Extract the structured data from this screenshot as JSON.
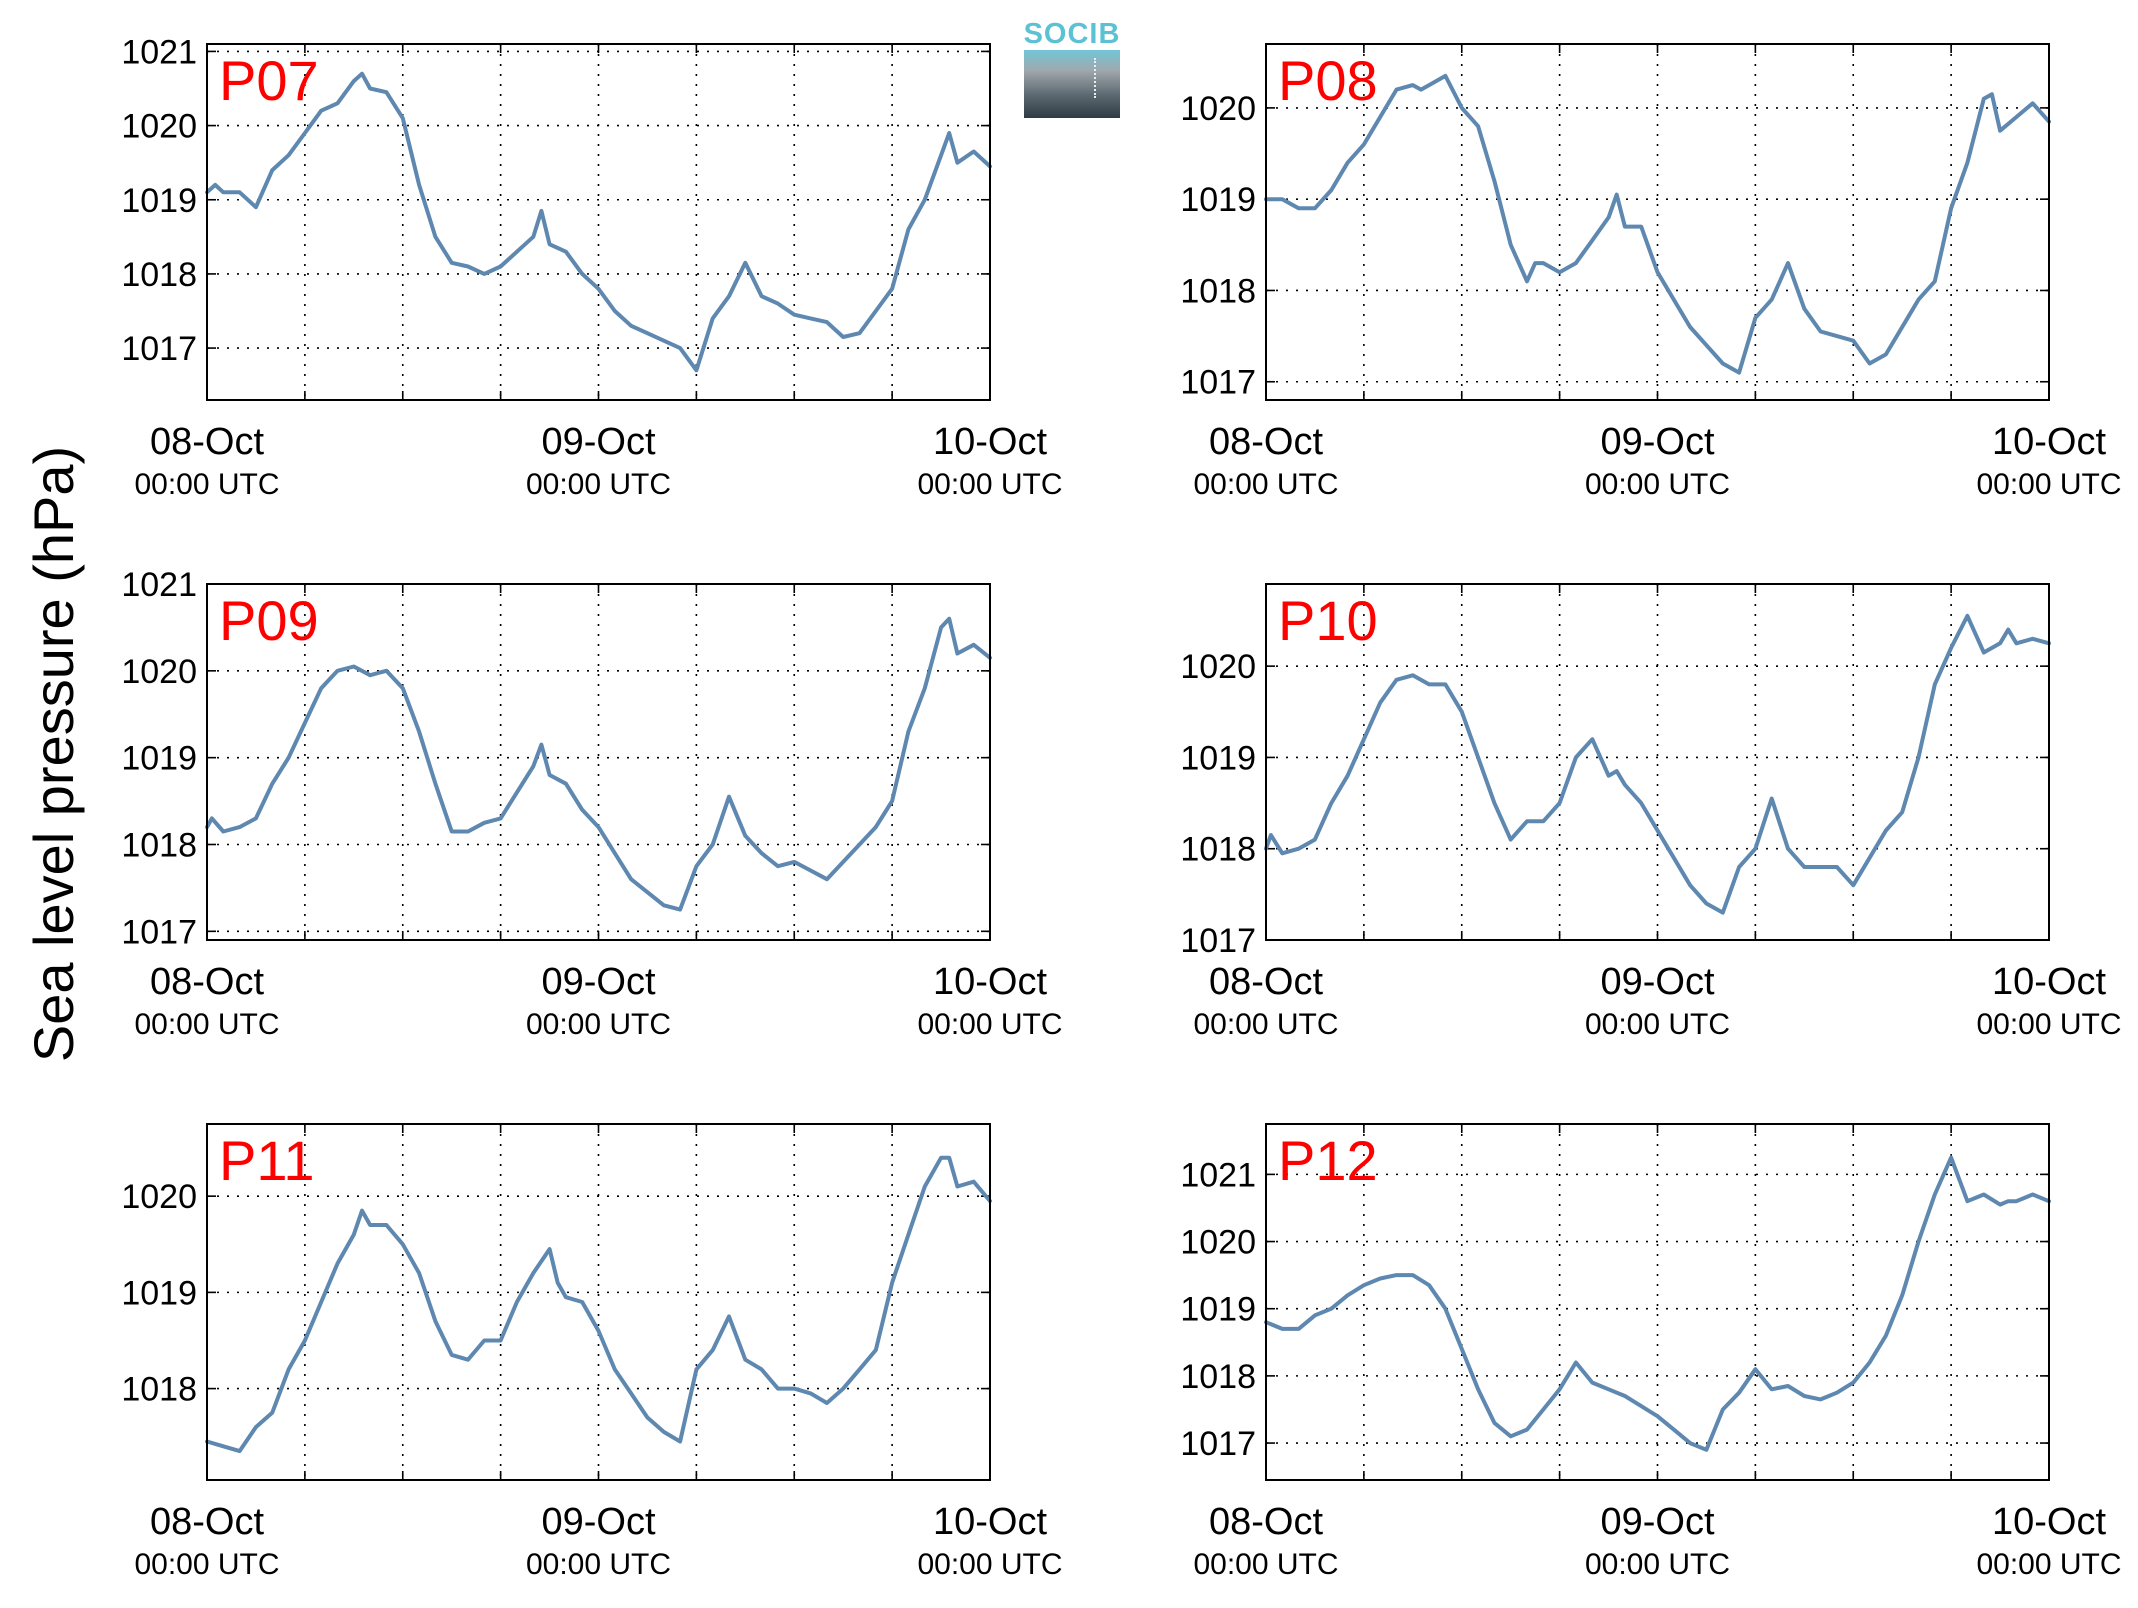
{
  "figure": {
    "ylabel": "Sea level pressure (hPa)",
    "logo_text": "SOCIB",
    "colors": {
      "line": "#5e88b0",
      "station_label": "#ff0000",
      "axis": "#000000",
      "grid": "#000000"
    }
  },
  "chart_data": [
    {
      "type": "line",
      "title": "P07",
      "x_ticks": [
        {
          "line1": "08-Oct",
          "line2": "00:00 UTC"
        },
        {
          "line1": "09-Oct",
          "line2": "00:00 UTC"
        },
        {
          "line1": "10-Oct",
          "line2": "00:00 UTC"
        }
      ],
      "xlim_hours": [
        0,
        48
      ],
      "ylim": [
        1016.3,
        1021.1
      ],
      "y_ticks": [
        1017,
        1018,
        1019,
        1020,
        1021
      ],
      "grid": true,
      "x_hours": [
        0,
        0.5,
        1,
        2,
        3,
        4,
        5,
        6,
        7,
        8,
        9,
        9.5,
        10,
        11,
        12,
        13,
        14,
        15,
        16,
        17,
        18,
        19,
        20,
        20.5,
        21,
        22,
        23,
        24,
        25,
        26,
        27,
        28,
        29,
        30,
        31,
        32,
        33,
        34,
        35,
        36,
        37,
        38,
        39,
        40,
        41,
        42,
        43,
        44,
        45,
        45.5,
        46,
        47,
        48
      ],
      "values": [
        1019.1,
        1019.2,
        1019.1,
        1019.1,
        1018.9,
        1019.4,
        1019.6,
        1019.9,
        1020.2,
        1020.3,
        1020.6,
        1020.7,
        1020.5,
        1020.45,
        1020.1,
        1019.2,
        1018.5,
        1018.15,
        1018.1,
        1018.0,
        1018.1,
        1018.3,
        1018.5,
        1018.85,
        1018.4,
        1018.3,
        1018.0,
        1017.8,
        1017.5,
        1017.3,
        1017.2,
        1017.1,
        1017.0,
        1016.7,
        1017.4,
        1017.7,
        1018.15,
        1017.7,
        1017.6,
        1017.45,
        1017.4,
        1017.35,
        1017.15,
        1017.2,
        1017.5,
        1017.8,
        1018.6,
        1019.0,
        1019.6,
        1019.9,
        1019.5,
        1019.65,
        1019.45
      ]
    },
    {
      "type": "line",
      "title": "P08",
      "x_ticks": [
        {
          "line1": "08-Oct",
          "line2": "00:00 UTC"
        },
        {
          "line1": "09-Oct",
          "line2": "00:00 UTC"
        },
        {
          "line1": "10-Oct",
          "line2": "00:00 UTC"
        }
      ],
      "xlim_hours": [
        0,
        48
      ],
      "ylim": [
        1016.8,
        1020.7
      ],
      "y_ticks": [
        1017,
        1018,
        1019,
        1020
      ],
      "grid": true,
      "x_hours": [
        0,
        1,
        2,
        3,
        4,
        5,
        6,
        7,
        8,
        9,
        9.5,
        10,
        11,
        12,
        13,
        14,
        15,
        16,
        16.5,
        17,
        18,
        19,
        20,
        21,
        21.5,
        22,
        23,
        24,
        25,
        26,
        27,
        28,
        29,
        30,
        31,
        32,
        33,
        34,
        35,
        36,
        37,
        38,
        39,
        40,
        41,
        42,
        43,
        44,
        44.5,
        45,
        46,
        47,
        48
      ],
      "values": [
        1019.0,
        1019.0,
        1018.9,
        1018.9,
        1019.1,
        1019.4,
        1019.6,
        1019.9,
        1020.2,
        1020.25,
        1020.2,
        1020.25,
        1020.35,
        1020.0,
        1019.8,
        1019.2,
        1018.5,
        1018.1,
        1018.3,
        1018.3,
        1018.2,
        1018.3,
        1018.55,
        1018.8,
        1019.05,
        1018.7,
        1018.7,
        1018.2,
        1017.9,
        1017.6,
        1017.4,
        1017.2,
        1017.1,
        1017.7,
        1017.9,
        1018.3,
        1017.8,
        1017.55,
        1017.5,
        1017.45,
        1017.2,
        1017.3,
        1017.6,
        1017.9,
        1018.1,
        1018.9,
        1019.4,
        1020.1,
        1020.15,
        1019.75,
        1019.9,
        1020.05,
        1019.85
      ]
    },
    {
      "type": "line",
      "title": "P09",
      "x_ticks": [
        {
          "line1": "08-Oct",
          "line2": "00:00 UTC"
        },
        {
          "line1": "09-Oct",
          "line2": "00:00 UTC"
        },
        {
          "line1": "10-Oct",
          "line2": "00:00 UTC"
        }
      ],
      "xlim_hours": [
        0,
        48
      ],
      "ylim": [
        1016.9,
        1021.0
      ],
      "y_ticks": [
        1017,
        1018,
        1019,
        1020,
        1021
      ],
      "grid": true,
      "x_hours": [
        0,
        0.3,
        1,
        2,
        3,
        4,
        5,
        6,
        7,
        8,
        9,
        10,
        11,
        12,
        13,
        14,
        15,
        16,
        17,
        18,
        19,
        20,
        20.5,
        21,
        22,
        23,
        24,
        25,
        26,
        27,
        28,
        29,
        30,
        31,
        32,
        33,
        34,
        35,
        36,
        37,
        38,
        39,
        40,
        41,
        42,
        43,
        44,
        45,
        45.5,
        46,
        47,
        48
      ],
      "values": [
        1018.2,
        1018.3,
        1018.15,
        1018.2,
        1018.3,
        1018.7,
        1019.0,
        1019.4,
        1019.8,
        1020.0,
        1020.05,
        1019.95,
        1020.0,
        1019.8,
        1019.3,
        1018.7,
        1018.15,
        1018.15,
        1018.25,
        1018.3,
        1018.6,
        1018.9,
        1019.15,
        1018.8,
        1018.7,
        1018.4,
        1018.2,
        1017.9,
        1017.6,
        1017.45,
        1017.3,
        1017.25,
        1017.75,
        1018.0,
        1018.55,
        1018.1,
        1017.9,
        1017.75,
        1017.8,
        1017.7,
        1017.6,
        1017.8,
        1018.0,
        1018.2,
        1018.5,
        1019.3,
        1019.8,
        1020.5,
        1020.6,
        1020.2,
        1020.3,
        1020.15
      ]
    },
    {
      "type": "line",
      "title": "P10",
      "x_ticks": [
        {
          "line1": "08-Oct",
          "line2": "00:00 UTC"
        },
        {
          "line1": "09-Oct",
          "line2": "00:00 UTC"
        },
        {
          "line1": "10-Oct",
          "line2": "00:00 UTC"
        }
      ],
      "xlim_hours": [
        0,
        48
      ],
      "ylim": [
        1017.0,
        1020.9
      ],
      "y_ticks": [
        1017,
        1018,
        1019,
        1020
      ],
      "grid": true,
      "x_hours": [
        0,
        0.3,
        1,
        2,
        3,
        4,
        5,
        6,
        7,
        8,
        9,
        10,
        11,
        12,
        13,
        14,
        15,
        16,
        17,
        18,
        19,
        20,
        21,
        21.5,
        22,
        23,
        24,
        25,
        26,
        27,
        28,
        29,
        30,
        31,
        32,
        33,
        34,
        35,
        36,
        37,
        38,
        39,
        40,
        41,
        42,
        43,
        44,
        45,
        45.5,
        46,
        47,
        48
      ],
      "values": [
        1018.0,
        1018.15,
        1017.95,
        1018.0,
        1018.1,
        1018.5,
        1018.8,
        1019.2,
        1019.6,
        1019.85,
        1019.9,
        1019.8,
        1019.8,
        1019.5,
        1019.0,
        1018.5,
        1018.1,
        1018.3,
        1018.3,
        1018.5,
        1019.0,
        1019.2,
        1018.8,
        1018.85,
        1018.7,
        1018.5,
        1018.2,
        1017.9,
        1017.6,
        1017.4,
        1017.3,
        1017.8,
        1018.0,
        1018.55,
        1018.0,
        1017.8,
        1017.8,
        1017.8,
        1017.6,
        1017.9,
        1018.2,
        1018.4,
        1019.0,
        1019.8,
        1020.2,
        1020.55,
        1020.15,
        1020.25,
        1020.4,
        1020.25,
        1020.3,
        1020.25
      ]
    },
    {
      "type": "line",
      "title": "P11",
      "x_ticks": [
        {
          "line1": "08-Oct",
          "line2": "00:00 UTC"
        },
        {
          "line1": "09-Oct",
          "line2": "00:00 UTC"
        },
        {
          "line1": "10-Oct",
          "line2": "00:00 UTC"
        }
      ],
      "xlim_hours": [
        0,
        48
      ],
      "ylim": [
        1017.05,
        1020.75
      ],
      "y_ticks": [
        1018,
        1019,
        1020
      ],
      "grid": true,
      "x_hours": [
        0,
        1,
        2,
        3,
        4,
        5,
        6,
        7,
        8,
        9,
        9.5,
        10,
        11,
        12,
        13,
        14,
        15,
        16,
        17,
        18,
        19,
        20,
        21,
        21.5,
        22,
        23,
        24,
        25,
        26,
        27,
        28,
        29,
        30,
        31,
        32,
        33,
        34,
        35,
        36,
        37,
        38,
        39,
        40,
        41,
        42,
        43,
        44,
        45,
        45.5,
        46,
        47,
        48
      ],
      "values": [
        1017.45,
        1017.4,
        1017.35,
        1017.6,
        1017.75,
        1018.2,
        1018.5,
        1018.9,
        1019.3,
        1019.6,
        1019.85,
        1019.7,
        1019.7,
        1019.5,
        1019.2,
        1018.7,
        1018.35,
        1018.3,
        1018.5,
        1018.5,
        1018.9,
        1019.2,
        1019.45,
        1019.1,
        1018.95,
        1018.9,
        1018.6,
        1018.2,
        1017.95,
        1017.7,
        1017.55,
        1017.45,
        1018.2,
        1018.4,
        1018.75,
        1018.3,
        1018.2,
        1018.0,
        1018.0,
        1017.95,
        1017.85,
        1018.0,
        1018.2,
        1018.4,
        1019.1,
        1019.6,
        1020.1,
        1020.4,
        1020.4,
        1020.1,
        1020.15,
        1019.95
      ]
    },
    {
      "type": "line",
      "title": "P12",
      "x_ticks": [
        {
          "line1": "08-Oct",
          "line2": "00:00 UTC"
        },
        {
          "line1": "09-Oct",
          "line2": "00:00 UTC"
        },
        {
          "line1": "10-Oct",
          "line2": "00:00 UTC"
        }
      ],
      "xlim_hours": [
        0,
        48
      ],
      "ylim": [
        1016.45,
        1021.75
      ],
      "y_ticks": [
        1017,
        1018,
        1019,
        1020,
        1021
      ],
      "grid": true,
      "x_hours": [
        0,
        1,
        2,
        3,
        4,
        5,
        6,
        7,
        8,
        9,
        10,
        11,
        12,
        13,
        14,
        15,
        16,
        17,
        18,
        19,
        20,
        21,
        22,
        23,
        24,
        25,
        26,
        27,
        28,
        29,
        30,
        31,
        32,
        33,
        34,
        35,
        36,
        37,
        38,
        39,
        40,
        41,
        42,
        43,
        44,
        45,
        45.5,
        46,
        46.5,
        47,
        48
      ],
      "values": [
        1018.8,
        1018.7,
        1018.7,
        1018.9,
        1019.0,
        1019.2,
        1019.35,
        1019.45,
        1019.5,
        1019.5,
        1019.35,
        1019.0,
        1018.4,
        1017.8,
        1017.3,
        1017.1,
        1017.2,
        1017.5,
        1017.8,
        1018.2,
        1017.9,
        1017.8,
        1017.7,
        1017.55,
        1017.4,
        1017.2,
        1017.0,
        1016.9,
        1017.5,
        1017.75,
        1018.1,
        1017.8,
        1017.85,
        1017.7,
        1017.65,
        1017.75,
        1017.9,
        1018.2,
        1018.6,
        1019.2,
        1020.0,
        1020.7,
        1021.25,
        1020.6,
        1020.7,
        1020.55,
        1020.6,
        1020.6,
        1020.65,
        1020.7,
        1020.6
      ]
    }
  ]
}
